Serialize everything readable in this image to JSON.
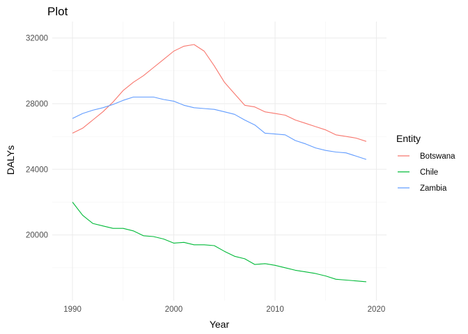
{
  "chart_data": {
    "type": "line",
    "title": "Plot",
    "xlabel": "Year",
    "ylabel": "DALYs",
    "xlim": [
      1988,
      2021
    ],
    "ylim": [
      16000,
      33000
    ],
    "x_ticks": [
      1990,
      2000,
      2010,
      2020
    ],
    "y_ticks": [
      20000,
      24000,
      28000,
      32000
    ],
    "grid": true,
    "legend": {
      "title": "Entity",
      "placement": "right"
    },
    "x": [
      1990,
      1991,
      1992,
      1993,
      1994,
      1995,
      1996,
      1997,
      1998,
      1999,
      2000,
      2001,
      2002,
      2003,
      2004,
      2005,
      2006,
      2007,
      2008,
      2009,
      2010,
      2011,
      2012,
      2013,
      2014,
      2015,
      2016,
      2017,
      2018,
      2019
    ],
    "series": [
      {
        "name": "Botswana",
        "color": "#F8766D",
        "values": [
          26200,
          26500,
          27000,
          27500,
          28100,
          28800,
          29300,
          29700,
          30200,
          30700,
          31200,
          31500,
          31600,
          31200,
          30300,
          29300,
          28600,
          27900,
          27800,
          27500,
          27400,
          27300,
          27000,
          26800,
          26600,
          26400,
          26100,
          26000,
          25900,
          25700
        ]
      },
      {
        "name": "Chile",
        "color": "#00BA38",
        "values": [
          22000,
          21200,
          20700,
          20550,
          20400,
          20400,
          20250,
          19950,
          19900,
          19750,
          19500,
          19550,
          19400,
          19400,
          19350,
          19000,
          18700,
          18550,
          18200,
          18250,
          18150,
          18000,
          17850,
          17750,
          17650,
          17500,
          17300,
          17250,
          17200,
          17150
        ]
      },
      {
        "name": "Zambia",
        "color": "#619CFF",
        "values": [
          27100,
          27400,
          27600,
          27750,
          27950,
          28200,
          28400,
          28400,
          28400,
          28250,
          28150,
          27900,
          27750,
          27700,
          27650,
          27500,
          27350,
          27000,
          26700,
          26200,
          26150,
          26100,
          25750,
          25550,
          25300,
          25150,
          25050,
          25000,
          24800,
          24600
        ]
      }
    ]
  }
}
